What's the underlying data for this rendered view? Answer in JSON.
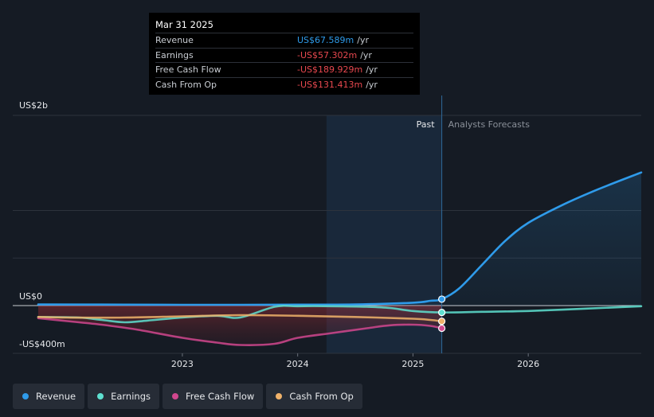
{
  "tooltip": {
    "date": "Mar 31 2025",
    "rows": [
      {
        "label": "Revenue",
        "value": "US$67.589m",
        "unit": "/yr",
        "color": "#2f9bea"
      },
      {
        "label": "Earnings",
        "value": "-US$57.302m",
        "unit": "/yr",
        "color": "#e8484f"
      },
      {
        "label": "Free Cash Flow",
        "value": "-US$189.929m",
        "unit": "/yr",
        "color": "#e8484f"
      },
      {
        "label": "Cash From Op",
        "value": "-US$131.413m",
        "unit": "/yr",
        "color": "#e8484f"
      }
    ]
  },
  "labels": {
    "past": "Past",
    "forecast": "Analysts Forecasts"
  },
  "legend": [
    {
      "label": "Revenue",
      "color": "#2f9bea"
    },
    {
      "label": "Earnings",
      "color": "#5ee0d0"
    },
    {
      "label": "Free Cash Flow",
      "color": "#d1478e"
    },
    {
      "label": "Cash From Op",
      "color": "#f0b26a"
    }
  ],
  "chart_data": {
    "type": "line",
    "y_tick_labels": [
      "US$2b",
      "US$0",
      "-US$400m"
    ],
    "y_ticks": [
      2000,
      0,
      -400
    ],
    "ylim": [
      -400,
      2000
    ],
    "x_tick_labels": [
      "2023",
      "2024",
      "2025",
      "2026"
    ],
    "x_ticks": [
      2023,
      2024,
      2025,
      2026
    ],
    "xlim": [
      2021.75,
      2026.98
    ],
    "past_end": 2025.25,
    "highlight_start": 2024.25,
    "series": [
      {
        "name": "Revenue",
        "color": "#2f9bea",
        "x": [
          2021.75,
          2022.5,
          2023.0,
          2023.5,
          2024.0,
          2024.5,
          2025.0,
          2025.15,
          2025.25,
          2025.4,
          2025.6,
          2025.8,
          2026.0,
          2026.3,
          2026.6,
          2026.98
        ],
        "y": [
          12,
          10,
          8,
          8,
          10,
          12,
          30,
          50,
          67.6,
          180,
          430,
          680,
          870,
          1060,
          1220,
          1400
        ]
      },
      {
        "name": "Earnings",
        "color": "#5ee0d0",
        "x": [
          2021.75,
          2022.1,
          2022.3,
          2022.5,
          2022.7,
          2023.0,
          2023.3,
          2023.5,
          2023.8,
          2024.0,
          2024.3,
          2024.6,
          2024.8,
          2025.0,
          2025.25,
          2025.6,
          2026.0,
          2026.5,
          2026.98
        ],
        "y": [
          -95,
          -100,
          -120,
          -140,
          -125,
          -100,
          -85,
          -100,
          -10,
          -5,
          -5,
          -10,
          -20,
          -45,
          -57.3,
          -52,
          -45,
          -25,
          -5
        ]
      },
      {
        "name": "Free Cash Flow",
        "color": "#d1478e",
        "x": [
          2021.75,
          2022.0,
          2022.3,
          2022.6,
          2023.0,
          2023.3,
          2023.5,
          2023.8,
          2024.0,
          2024.3,
          2024.6,
          2024.8,
          2025.0,
          2025.15,
          2025.25
        ],
        "y": [
          -105,
          -130,
          -160,
          -200,
          -270,
          -310,
          -330,
          -320,
          -270,
          -230,
          -190,
          -165,
          -160,
          -170,
          -190
        ]
      },
      {
        "name": "Cash From Op",
        "color": "#f0b26a",
        "x": [
          2021.75,
          2022.0,
          2022.5,
          2023.0,
          2023.5,
          2024.0,
          2024.5,
          2025.0,
          2025.15,
          2025.25
        ],
        "y": [
          -95,
          -100,
          -100,
          -90,
          -80,
          -85,
          -95,
          -110,
          -120,
          -131.4
        ]
      }
    ]
  }
}
